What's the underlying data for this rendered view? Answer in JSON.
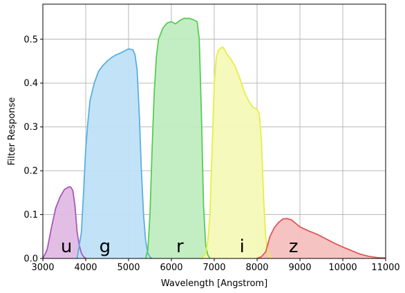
{
  "chart_data": {
    "type": "area",
    "title": "",
    "xlabel": "Wavelength [Angstrom]",
    "ylabel": "Filter Response",
    "xlim": [
      3000,
      11000
    ],
    "ylim": [
      0,
      0.58
    ],
    "xticks": [
      3000,
      4000,
      5000,
      6000,
      7000,
      8000,
      9000,
      10000,
      11000
    ],
    "yticks": [
      0.0,
      0.1,
      0.2,
      0.3,
      0.4,
      0.5
    ],
    "xtick_labels": [
      "3000",
      "4000",
      "5000",
      "6000",
      "7000",
      "8000",
      "9000",
      "10000",
      "11000"
    ],
    "ytick_labels": [
      "0.0",
      "0.1",
      "0.2",
      "0.3",
      "0.4",
      "0.5"
    ],
    "grid": true,
    "legend": "none",
    "series": [
      {
        "label": "u",
        "label_x": 3550,
        "fill_color": "#e0bbe4",
        "line_color": "#aa55bb",
        "x": [
          3000,
          3100,
          3200,
          3300,
          3400,
          3500,
          3600,
          3650,
          3700,
          3750,
          3800,
          3850,
          3900,
          3950,
          4000
        ],
        "y": [
          0.0,
          0.02,
          0.07,
          0.115,
          0.14,
          0.157,
          0.163,
          0.163,
          0.155,
          0.12,
          0.06,
          0.03,
          0.012,
          0.004,
          0.0
        ]
      },
      {
        "label": "g",
        "label_x": 4450,
        "fill_color": "#bfe0f7",
        "line_color": "#5aaee0",
        "x": [
          3800,
          3900,
          3950,
          4000,
          4050,
          4100,
          4200,
          4300,
          4400,
          4500,
          4600,
          4700,
          4800,
          4900,
          5000,
          5100,
          5150,
          5200,
          5250,
          5300,
          5350,
          5400,
          5450,
          5500,
          5550
        ],
        "y": [
          0.0,
          0.06,
          0.15,
          0.25,
          0.31,
          0.36,
          0.4,
          0.427,
          0.44,
          0.45,
          0.458,
          0.464,
          0.468,
          0.473,
          0.478,
          0.476,
          0.465,
          0.43,
          0.33,
          0.2,
          0.1,
          0.04,
          0.012,
          0.003,
          0.0
        ]
      },
      {
        "label": "r",
        "label_x": 6200,
        "fill_color": "#c0edc0",
        "line_color": "#55cc55",
        "x": [
          5400,
          5450,
          5500,
          5550,
          5600,
          5650,
          5700,
          5800,
          5900,
          6000,
          6100,
          6200,
          6300,
          6350,
          6400,
          6500,
          6600,
          6650,
          6700,
          6750,
          6800,
          6850,
          6900
        ],
        "y": [
          0.0,
          0.02,
          0.1,
          0.25,
          0.38,
          0.46,
          0.5,
          0.525,
          0.537,
          0.54,
          0.535,
          0.543,
          0.548,
          0.547,
          0.548,
          0.545,
          0.54,
          0.5,
          0.33,
          0.12,
          0.03,
          0.008,
          0.0
        ]
      },
      {
        "label": "i",
        "label_x": 7650,
        "fill_color": "#f5f9b8",
        "line_color": "#e6ee44",
        "x": [
          6700,
          6800,
          6850,
          6900,
          6950,
          7000,
          7050,
          7100,
          7150,
          7200,
          7250,
          7300,
          7400,
          7500,
          7600,
          7700,
          7800,
          7900,
          8000,
          8050,
          8100,
          8150,
          8200,
          8250,
          8300,
          8350
        ],
        "y": [
          0.0,
          0.01,
          0.04,
          0.1,
          0.25,
          0.4,
          0.46,
          0.475,
          0.48,
          0.482,
          0.475,
          0.465,
          0.453,
          0.435,
          0.41,
          0.38,
          0.36,
          0.345,
          0.34,
          0.33,
          0.27,
          0.14,
          0.05,
          0.015,
          0.004,
          0.0
        ]
      },
      {
        "label": "z",
        "label_x": 8850,
        "fill_color": "#f5c0c0",
        "line_color": "#e05555",
        "x": [
          8000,
          8100,
          8200,
          8300,
          8400,
          8500,
          8600,
          8700,
          8800,
          8900,
          9000,
          9200,
          9400,
          9600,
          9800,
          10000,
          10200,
          10400,
          10600,
          10800,
          11000
        ],
        "y": [
          0.0,
          0.004,
          0.015,
          0.05,
          0.07,
          0.082,
          0.09,
          0.091,
          0.088,
          0.08,
          0.072,
          0.063,
          0.055,
          0.045,
          0.035,
          0.026,
          0.018,
          0.01,
          0.005,
          0.002,
          0.001
        ]
      }
    ]
  }
}
